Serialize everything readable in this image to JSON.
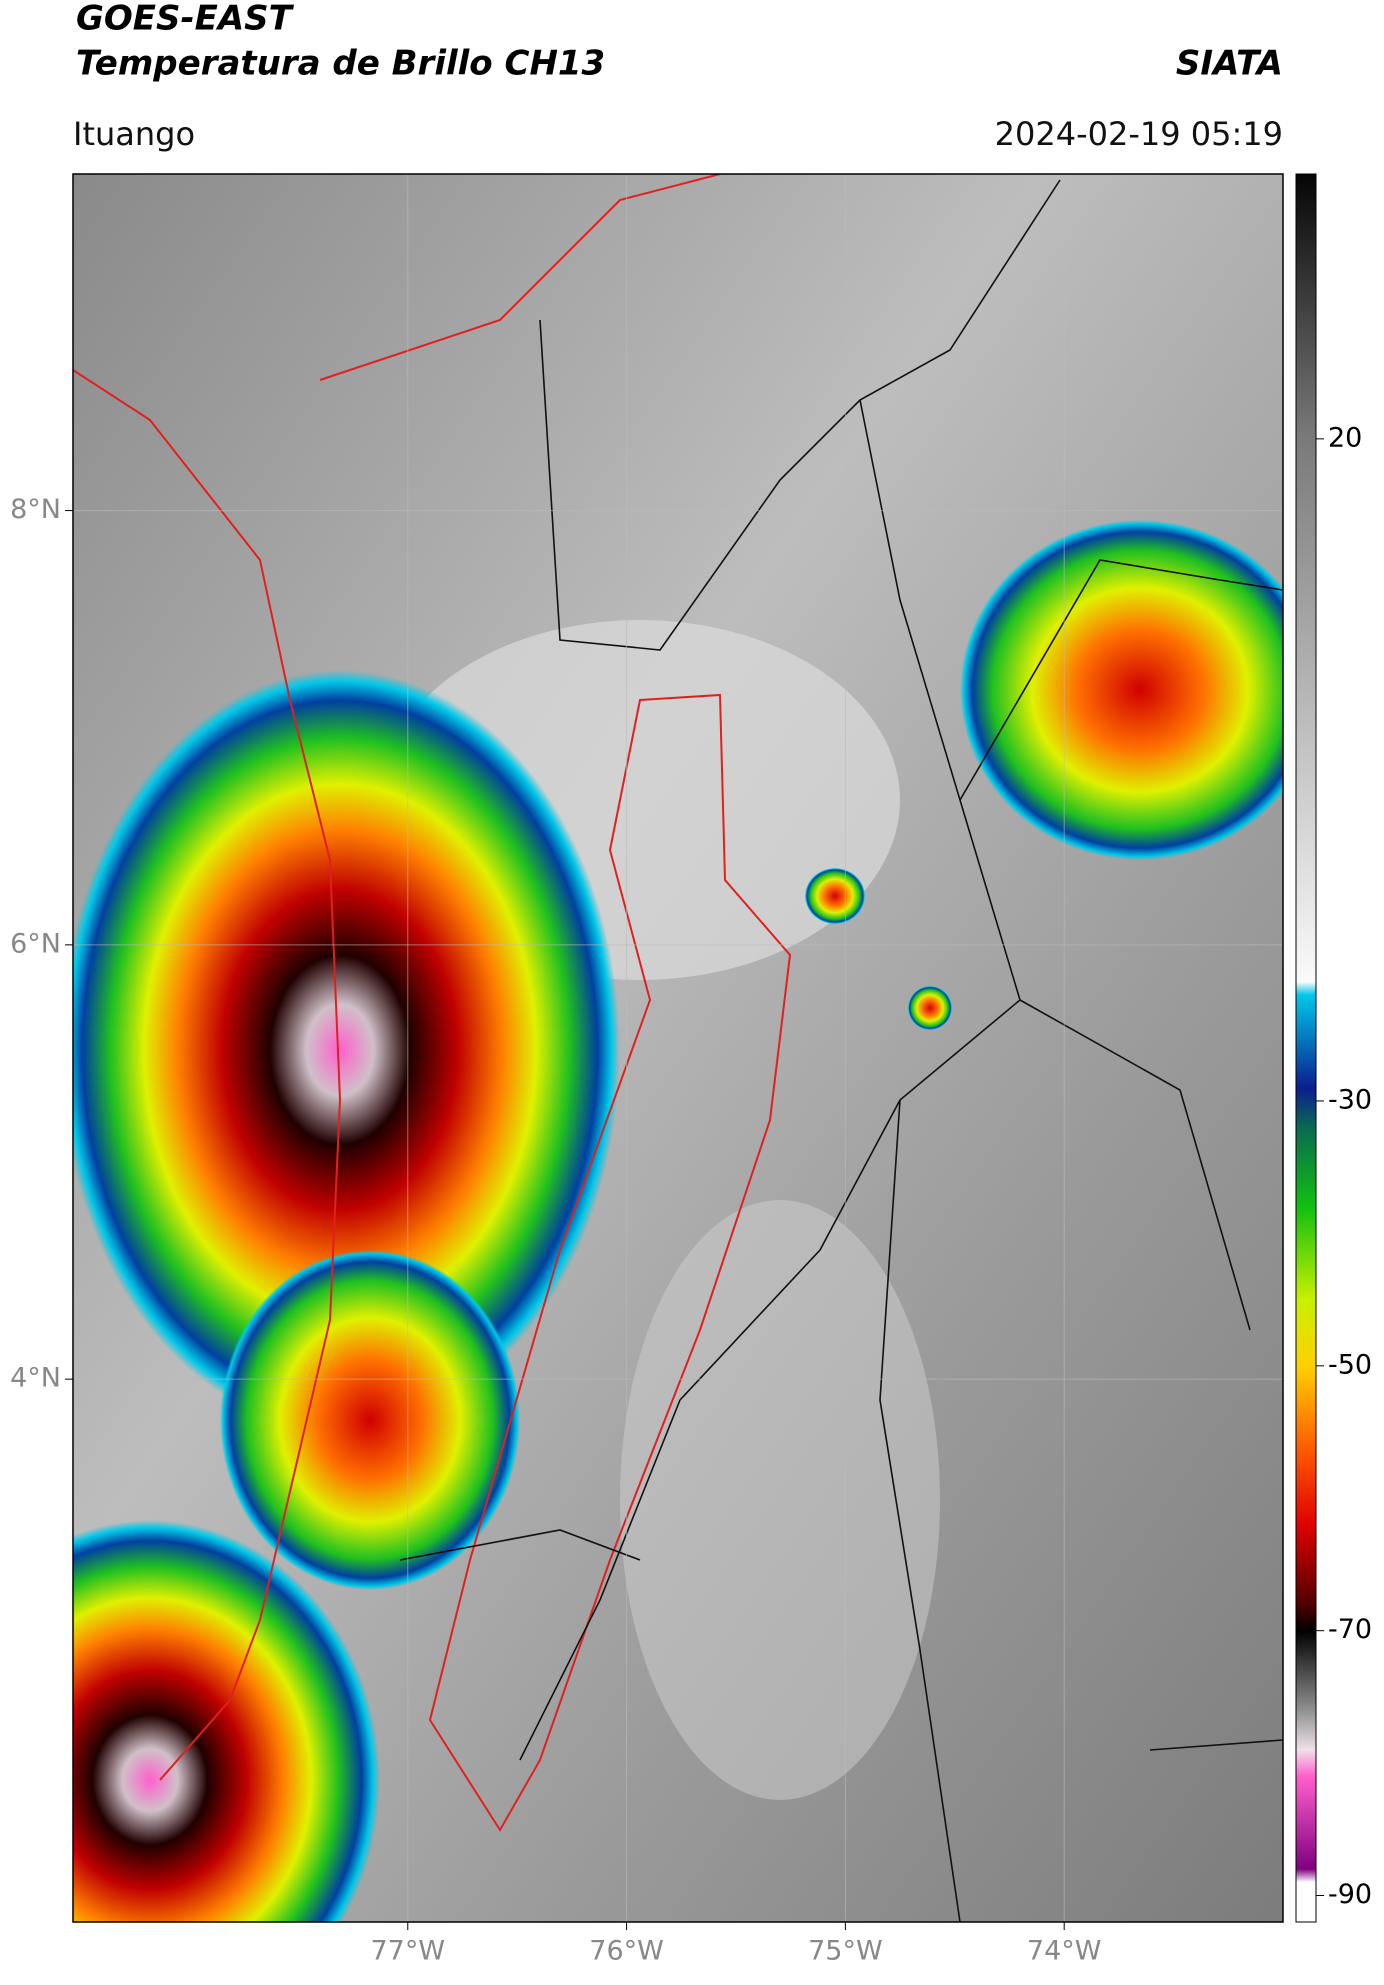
{
  "header": {
    "title": "GOES-EAST",
    "subtitle": "Temperatura de Brillo CH13",
    "source": "SIATA",
    "location": "Ituango",
    "datetime": "2024-02-19 05:19"
  },
  "map": {
    "xlim": [
      -78.53,
      -73.0
    ],
    "ylim": [
      1.5,
      9.55
    ],
    "grid": true,
    "xticks": [
      {
        "value": -77,
        "label": "77°W"
      },
      {
        "value": -76,
        "label": "76°W"
      },
      {
        "value": -75,
        "label": "75°W"
      },
      {
        "value": -74,
        "label": "74°W"
      }
    ],
    "yticks": [
      {
        "value": 8,
        "label": "8°N"
      },
      {
        "value": 6,
        "label": "6°N"
      },
      {
        "value": 4,
        "label": "4°N"
      }
    ]
  },
  "colorbar": {
    "lim": [
      -92,
      40
    ],
    "ticks": [
      20,
      -30,
      -50,
      -70,
      -90
    ],
    "colormap": [
      {
        "value": 40,
        "color": "#050505"
      },
      {
        "value": 20,
        "color": "#7a7a7a"
      },
      {
        "value": -21,
        "color": "#fafafa"
      },
      {
        "value": -22,
        "color": "#00c8e8"
      },
      {
        "value": -29,
        "color": "#0a1e90"
      },
      {
        "value": -32,
        "color": "#0a6a50"
      },
      {
        "value": -38,
        "color": "#10c010"
      },
      {
        "value": -45,
        "color": "#c8f000"
      },
      {
        "value": -50,
        "color": "#ffd000"
      },
      {
        "value": -56,
        "color": "#ff6000"
      },
      {
        "value": -62,
        "color": "#e00000"
      },
      {
        "value": -68,
        "color": "#500000"
      },
      {
        "value": -70,
        "color": "#000000"
      },
      {
        "value": -76,
        "color": "#909090"
      },
      {
        "value": -79,
        "color": "#f0e0ea"
      },
      {
        "value": -81,
        "color": "#ff60cc"
      },
      {
        "value": -88,
        "color": "#800080"
      },
      {
        "value": -89,
        "color": "#ffffff"
      }
    ]
  }
}
